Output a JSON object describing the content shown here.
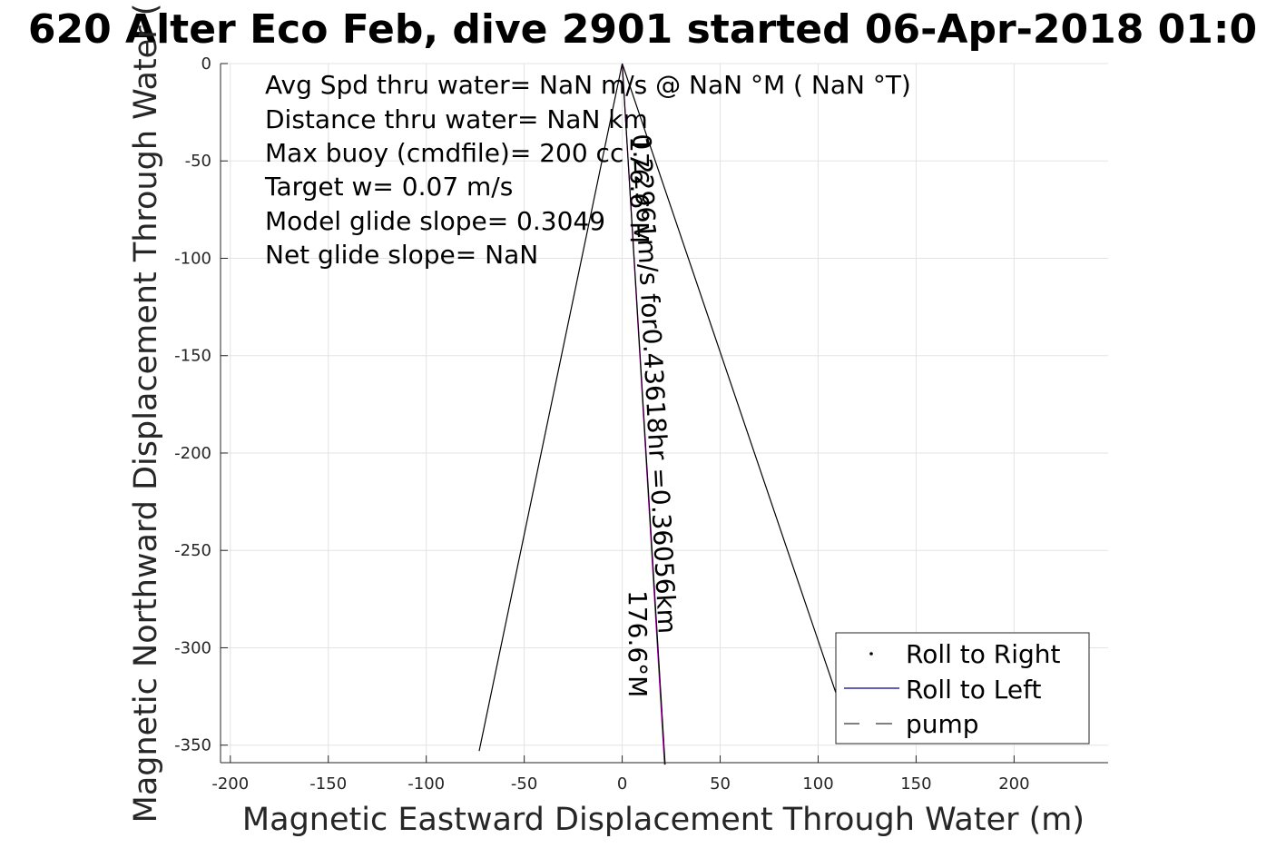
{
  "chart_data": {
    "type": "line",
    "title": "620 Alter Eco Feb, dive 2901 started 06-Apr-2018 01:0",
    "xlabel": "Magnetic Eastward Displacement Through Water (m)",
    "ylabel": "Magnetic Northward Displacement Through Water (",
    "xlim": [
      -205,
      248
    ],
    "ylim": [
      -359,
      0
    ],
    "x_ticks": [
      -200,
      -150,
      -100,
      -50,
      0,
      50,
      100,
      150,
      200
    ],
    "y_ticks": [
      0,
      -50,
      -100,
      -150,
      -200,
      -250,
      -300,
      -350
    ],
    "x_tick_labels": [
      "-200",
      "-150",
      "-100",
      "-50",
      "0",
      "50",
      "100",
      "150",
      "200"
    ],
    "y_tick_labels": [
      "0",
      "-50",
      "-100",
      "-150",
      "-200",
      "-250",
      "-300",
      "-350"
    ],
    "grid": true,
    "legend_position": "bottom-right",
    "legend": [
      {
        "label": "Roll to Right",
        "marker": "dot",
        "color": "#000000"
      },
      {
        "label": "Roll to Left",
        "marker": "line",
        "color": "#00008b"
      },
      {
        "label": "pump",
        "marker": "dashed",
        "color": "#000000"
      }
    ],
    "series": [
      {
        "name": "",
        "color": "#000000",
        "x": [
          0,
          -73
        ],
        "y": [
          0,
          -353
        ]
      },
      {
        "name": "",
        "color": "#000000",
        "x": [
          0,
          110
        ],
        "y": [
          0,
          -326
        ]
      },
      {
        "name": "",
        "color": "#cc00cc",
        "x": [
          0,
          21.6
        ],
        "y": [
          0,
          -360
        ]
      },
      {
        "name": "",
        "color": "#000000",
        "x": [
          0,
          21.9
        ],
        "y": [
          0,
          -360
        ]
      }
    ],
    "annotations": [
      "Avg Spd thru water=   NaN m/s @   NaN °M (  NaN °T)",
      "Distance thru water=   NaN km",
      "Max buoy (cmdfile)= 200 cc",
      "Target w= 0.07 m/s",
      "Model glide slope= 0.3049",
      "Net glide slope=    NaN"
    ],
    "line_labels": [
      {
        "text": "0.22961m/s for0.43618hr =0.36056km",
        "anchor": [
          5,
          -35
        ]
      },
      {
        "text": "176.6°M",
        "anchor": [
          -6,
          -37
        ]
      },
      {
        "text": "176.6°M",
        "anchor": [
          7,
          -273
        ]
      }
    ]
  }
}
